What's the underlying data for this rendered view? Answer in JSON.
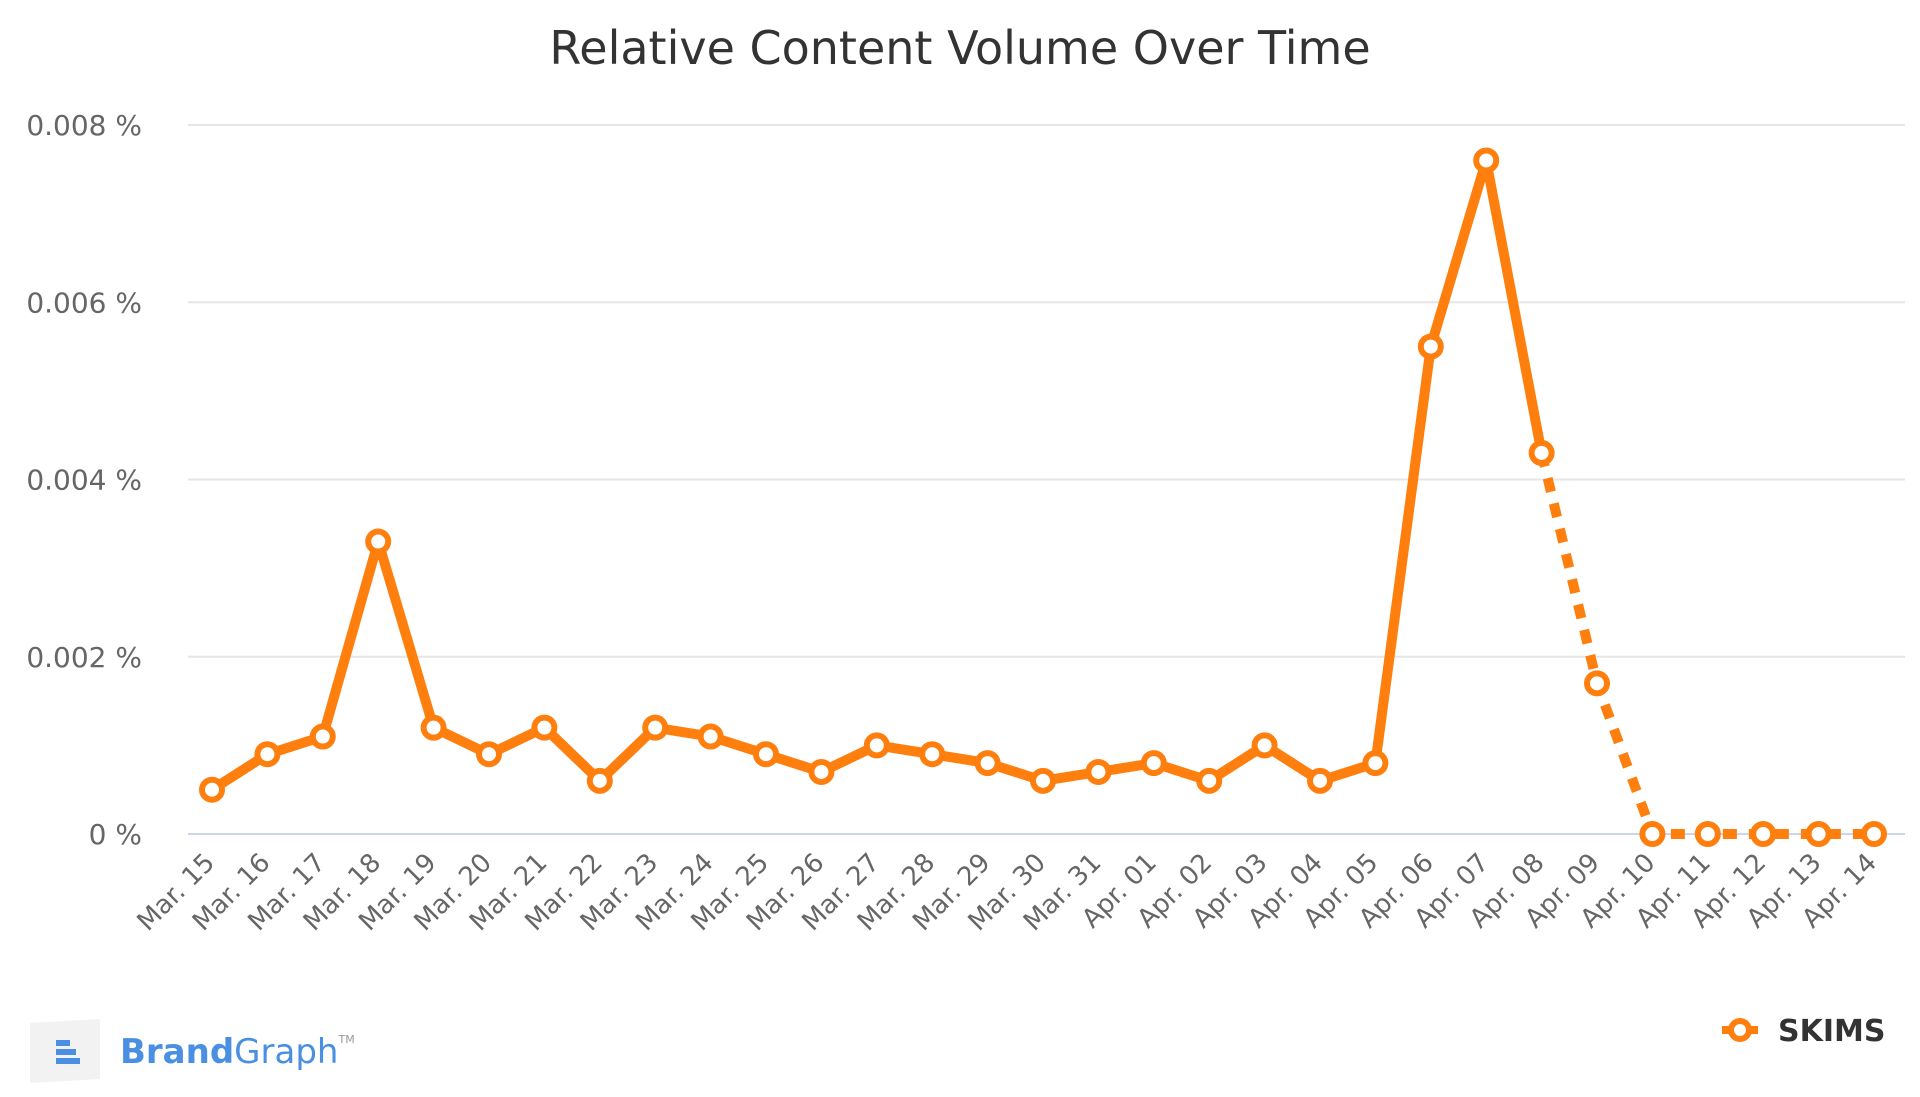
{
  "brand": {
    "name_part1": "Brand",
    "name_part2": "Graph",
    "tm": "TM",
    "color": "#4a90e2"
  },
  "colors": {
    "series": "#ff7f0e",
    "grid": "#e6e6e6",
    "axis_line": "#ccd6eb"
  },
  "chart_data": {
    "type": "line",
    "title": "Relative Content Volume Over Time",
    "xlabel": "",
    "ylabel": "",
    "y_ticks": [
      "0 %",
      "0.002 %",
      "0.004 %",
      "0.006 %",
      "0.008 %"
    ],
    "ylim": [
      0,
      0.008
    ],
    "grid": true,
    "legend_position": "bottom-right",
    "categories": [
      "Mar. 15",
      "Mar. 16",
      "Mar. 17",
      "Mar. 18",
      "Mar. 19",
      "Mar. 20",
      "Mar. 21",
      "Mar. 22",
      "Mar. 23",
      "Mar. 24",
      "Mar. 25",
      "Mar. 26",
      "Mar. 27",
      "Mar. 28",
      "Mar. 29",
      "Mar. 30",
      "Mar. 31",
      "Apr. 01",
      "Apr. 02",
      "Apr. 03",
      "Apr. 04",
      "Apr. 05",
      "Apr. 06",
      "Apr. 07",
      "Apr. 08",
      "Apr. 09",
      "Apr. 10",
      "Apr. 11",
      "Apr. 12",
      "Apr. 13",
      "Apr. 14"
    ],
    "series": [
      {
        "name": "SKIMS",
        "color": "#ff7f0e",
        "values": [
          0.0005,
          0.0009,
          0.0011,
          0.0033,
          0.0012,
          0.0009,
          0.0012,
          0.0006,
          0.0012,
          0.0011,
          0.0009,
          0.0007,
          0.001,
          0.0009,
          0.0008,
          0.0006,
          0.0007,
          0.0008,
          0.0006,
          0.001,
          0.0006,
          0.0008,
          0.0055,
          0.0076,
          0.0043,
          0.0017,
          0,
          0,
          0,
          0,
          0
        ],
        "dashed_from_category": "Apr. 08"
      }
    ]
  }
}
